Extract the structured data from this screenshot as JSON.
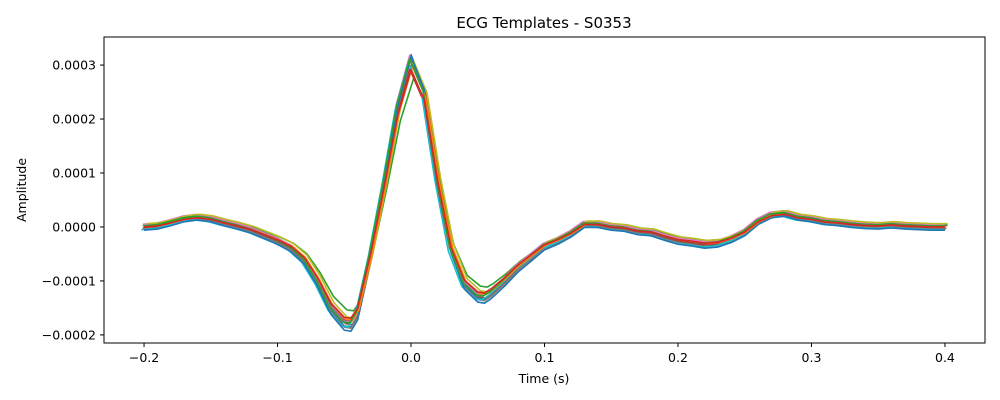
{
  "chart_data": {
    "type": "line",
    "title": "ECG Templates - S0353",
    "xlabel": "Time (s)",
    "ylabel": "Amplitude",
    "xlim": [
      -0.23,
      0.43
    ],
    "ylim": [
      -0.000215,
      0.000352
    ],
    "grid": false,
    "legend": "none",
    "x_ticks": [
      {
        "value": -0.2,
        "label": "−0.2"
      },
      {
        "value": -0.1,
        "label": "−0.1"
      },
      {
        "value": 0.0,
        "label": "0.0"
      },
      {
        "value": 0.1,
        "label": "0.1"
      },
      {
        "value": 0.2,
        "label": "0.2"
      },
      {
        "value": 0.3,
        "label": "0.3"
      },
      {
        "value": 0.4,
        "label": "0.4"
      }
    ],
    "y_ticks": [
      {
        "value": -0.0002,
        "label": "−0.0002"
      },
      {
        "value": -0.0001,
        "label": "−0.0001"
      },
      {
        "value": 0.0,
        "label": "0.0000"
      },
      {
        "value": 0.0001,
        "label": "0.0001"
      },
      {
        "value": 0.0002,
        "label": "0.0002"
      },
      {
        "value": 0.0003,
        "label": "0.0003"
      }
    ],
    "template": {
      "x": [
        -0.2,
        -0.19,
        -0.18,
        -0.17,
        -0.16,
        -0.15,
        -0.14,
        -0.13,
        -0.12,
        -0.11,
        -0.1,
        -0.09,
        -0.08,
        -0.07,
        -0.06,
        -0.05,
        -0.045,
        -0.04,
        -0.03,
        -0.02,
        -0.01,
        0.0,
        0.01,
        0.02,
        0.03,
        0.04,
        0.05,
        0.055,
        0.06,
        0.07,
        0.08,
        0.09,
        0.1,
        0.11,
        0.12,
        0.13,
        0.14,
        0.15,
        0.16,
        0.17,
        0.18,
        0.19,
        0.2,
        0.21,
        0.22,
        0.23,
        0.24,
        0.25,
        0.26,
        0.27,
        0.28,
        0.29,
        0.3,
        0.31,
        0.32,
        0.33,
        0.34,
        0.35,
        0.36,
        0.37,
        0.38,
        0.39,
        0.4
      ],
      "y": [
        0.0,
        2e-06,
        8e-06,
        1.5e-05,
        1.8e-05,
        1.5e-05,
        8e-06,
        2e-06,
        -5e-06,
        -1.5e-05,
        -2.5e-05,
        -3.8e-05,
        -6e-05,
        -0.0001,
        -0.00015,
        -0.000178,
        -0.00018,
        -0.00016,
        -5e-05,
        8e-05,
        0.00022,
        0.00031,
        0.00025,
        9e-05,
        -4e-05,
        -0.000105,
        -0.000128,
        -0.00013,
        -0.000122,
        -0.0001,
        -7.5e-05,
        -5.5e-05,
        -3.5e-05,
        -2.5e-05,
        -1.2e-05,
        5e-06,
        5e-06,
        0.0,
        -2e-06,
        -8e-06,
        -1e-05,
        -1.8e-05,
        -2.5e-05,
        -2.8e-05,
        -3.2e-05,
        -3e-05,
        -2.2e-05,
        -1e-05,
        1e-05,
        2.2e-05,
        2.5e-05,
        1.8e-05,
        1.5e-05,
        1e-05,
        8e-06,
        5e-06,
        3e-06,
        2e-06,
        4e-06,
        2e-06,
        1e-06,
        0.0,
        0.0
      ]
    },
    "series": [
      {
        "color": "#1f77b4",
        "scale": 1.03,
        "offset": 0.0,
        "shift": 0.0
      },
      {
        "color": "#ff7f0e",
        "scale": 0.98,
        "offset": 2e-06,
        "shift": 0.001
      },
      {
        "color": "#2ca02c",
        "scale": 0.88,
        "offset": 3e-06,
        "shift": 0.002
      },
      {
        "color": "#d62728",
        "scale": 0.95,
        "offset": -2e-06,
        "shift": -0.001
      },
      {
        "color": "#9467bd",
        "scale": 1.0,
        "offset": 4e-06,
        "shift": 0.0
      },
      {
        "color": "#8c564b",
        "scale": 0.99,
        "offset": -3e-06,
        "shift": 0.001
      },
      {
        "color": "#e377c2",
        "scale": 1.01,
        "offset": 5e-06,
        "shift": -0.001
      },
      {
        "color": "#7f7f7f",
        "scale": 1.02,
        "offset": -4e-06,
        "shift": 0.0
      },
      {
        "color": "#bcbd22",
        "scale": 0.97,
        "offset": 6e-06,
        "shift": 0.002
      },
      {
        "color": "#17becf",
        "scale": 1.0,
        "offset": -5e-06,
        "shift": -0.002
      },
      {
        "color": "#1f77b4",
        "scale": 1.04,
        "offset": -6e-06,
        "shift": 0.0
      },
      {
        "color": "#ff7f0e",
        "scale": 0.96,
        "offset": 0.0,
        "shift": 0.001
      },
      {
        "color": "#2ca02c",
        "scale": 1.0,
        "offset": 2e-06,
        "shift": -0.001
      },
      {
        "color": "#d62728",
        "scale": 0.94,
        "offset": 0.0,
        "shift": 0.0
      }
    ]
  }
}
